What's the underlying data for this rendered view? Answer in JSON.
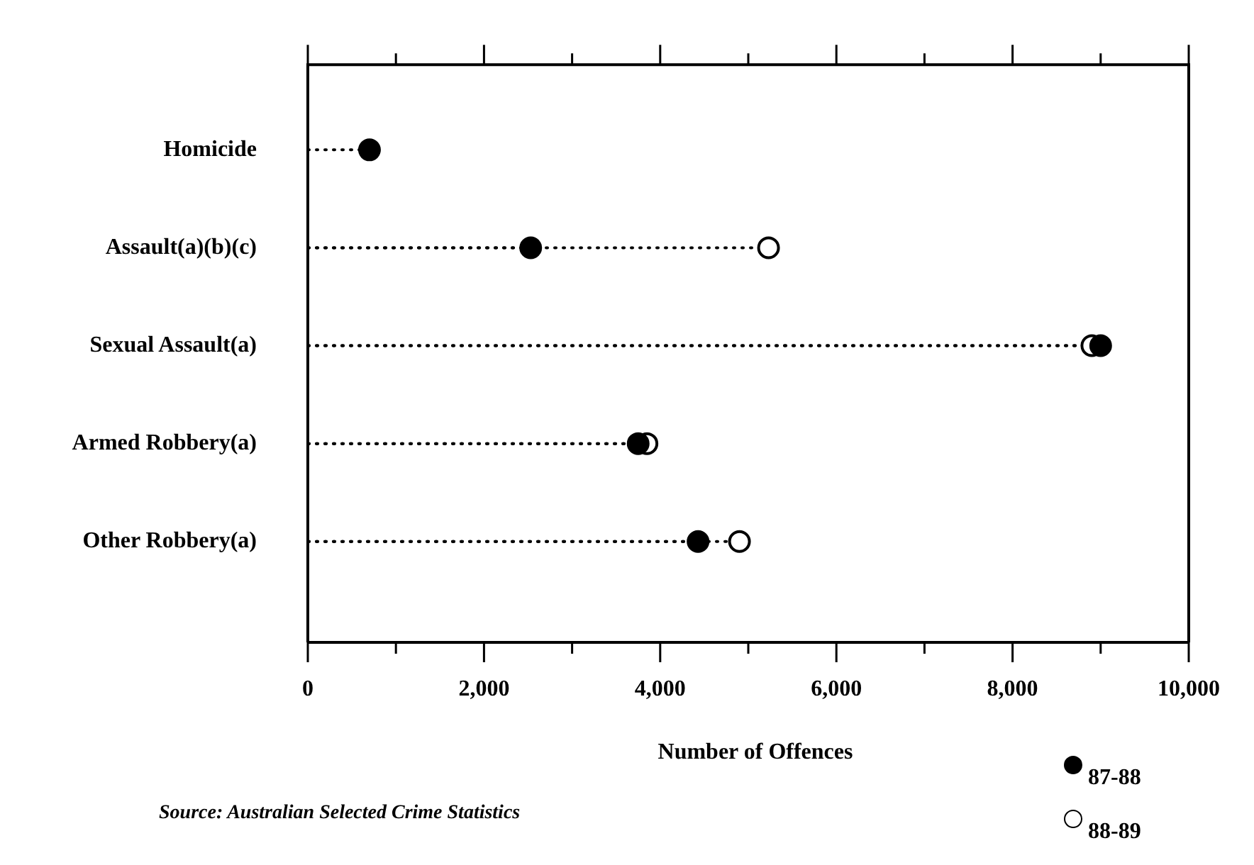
{
  "chart_data": {
    "type": "lollipop",
    "orientation": "horizontal",
    "xlabel": "Number of Offences",
    "categories": [
      "Homicide",
      "Assault(a)(b)(c)",
      "Sexual Assault(a)",
      "Armed Robbery(a)",
      "Other Robbery(a)"
    ],
    "series": [
      {
        "name": "87-88",
        "color": "#000000",
        "values": [
          700,
          2530,
          9000,
          3750,
          4430
        ]
      },
      {
        "name": "88-89",
        "color": "#ffffff",
        "values": [
          null,
          5230,
          8900,
          3850,
          4900
        ]
      }
    ],
    "xlim": [
      0,
      10000
    ],
    "xticks": [
      0,
      {
        "value": 1000,
        "label": null
      },
      {
        "value": 2000,
        "label": "2,000"
      },
      {
        "value": 3000,
        "label": null
      },
      {
        "value": 4000,
        "label": "4,000"
      },
      {
        "value": 5000,
        "label": null
      },
      {
        "value": 6000,
        "label": "6,000"
      },
      {
        "value": 7000,
        "label": null
      },
      {
        "value": 8000,
        "label": "8,000"
      },
      {
        "value": 9000,
        "label": null
      },
      {
        "value": 10000,
        "label": "10,000"
      }
    ],
    "marker": "circle",
    "line_style": "dotted",
    "grid": false,
    "legend": "bottom right",
    "annotations": [
      "Source: Australian Selected Crime Statistics"
    ]
  }
}
